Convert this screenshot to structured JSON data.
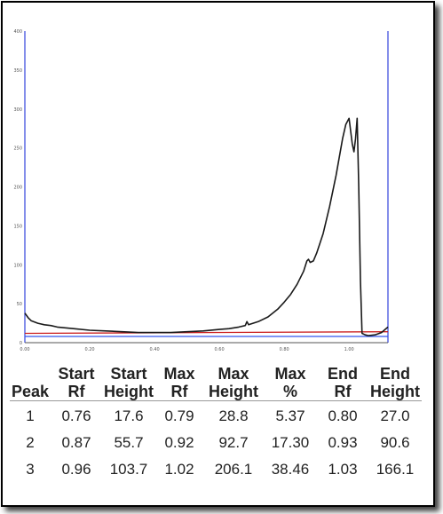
{
  "chart_data": {
    "type": "line",
    "y_ticks": [
      "400",
      "350",
      "300",
      "250",
      "200",
      "150",
      "100",
      "50",
      "0"
    ],
    "x_ticks": [
      "0.00",
      "0.20",
      "0.40",
      "0.60",
      "0.80",
      "1.00"
    ],
    "xlim": [
      0.0,
      1.12
    ],
    "ylim": [
      0,
      400
    ],
    "grid": false,
    "series": [
      {
        "color": "#1a1a1a",
        "x": [
          0.0,
          0.01,
          0.02,
          0.04,
          0.06,
          0.08,
          0.1,
          0.15,
          0.2,
          0.25,
          0.3,
          0.35,
          0.4,
          0.45,
          0.5,
          0.55,
          0.6,
          0.63,
          0.66,
          0.68,
          0.685,
          0.69,
          0.72,
          0.75,
          0.78,
          0.8,
          0.82,
          0.84,
          0.86,
          0.87,
          0.875,
          0.88,
          0.89,
          0.9,
          0.92,
          0.94,
          0.96,
          0.98,
          0.99,
          1.0,
          1.01,
          1.015,
          1.02,
          1.025,
          1.03,
          1.035,
          1.04,
          1.05,
          1.06,
          1.08,
          1.1,
          1.12
        ],
        "y": [
          38,
          32,
          28,
          25,
          23,
          22,
          20,
          18,
          16,
          15,
          14,
          13,
          13,
          13,
          14,
          15,
          17,
          18,
          20,
          22,
          27,
          23,
          27,
          33,
          43,
          52,
          62,
          75,
          92,
          105,
          107,
          103,
          105,
          115,
          140,
          175,
          215,
          262,
          280,
          288,
          255,
          245,
          262,
          288,
          200,
          80,
          12,
          10,
          9,
          10,
          13,
          20
        ]
      },
      {
        "color": "#cc2222",
        "x": [
          0.0,
          1.12
        ],
        "y": [
          12,
          14
        ]
      },
      {
        "color": "#3355ee",
        "x": [
          0.0,
          1.12
        ],
        "y": [
          8,
          8
        ]
      }
    ]
  },
  "table": {
    "headers": [
      [
        "Peak"
      ],
      [
        "Start",
        "Rf"
      ],
      [
        "Start",
        "Height"
      ],
      [
        "Max",
        "Rf"
      ],
      [
        "Max",
        "Height"
      ],
      [
        "Max",
        "%"
      ],
      [
        "End",
        "Rf"
      ],
      [
        "End",
        "Height"
      ]
    ],
    "rows": [
      [
        "1",
        "0.76",
        "17.6",
        "0.79",
        "28.8",
        "5.37",
        "0.80",
        "27.0"
      ],
      [
        "2",
        "0.87",
        "55.7",
        "0.92",
        "92.7",
        "17.30",
        "0.93",
        "90.6"
      ],
      [
        "3",
        "0.96",
        "103.7",
        "1.02",
        "206.1",
        "38.46",
        "1.03",
        "166.1"
      ]
    ]
  }
}
